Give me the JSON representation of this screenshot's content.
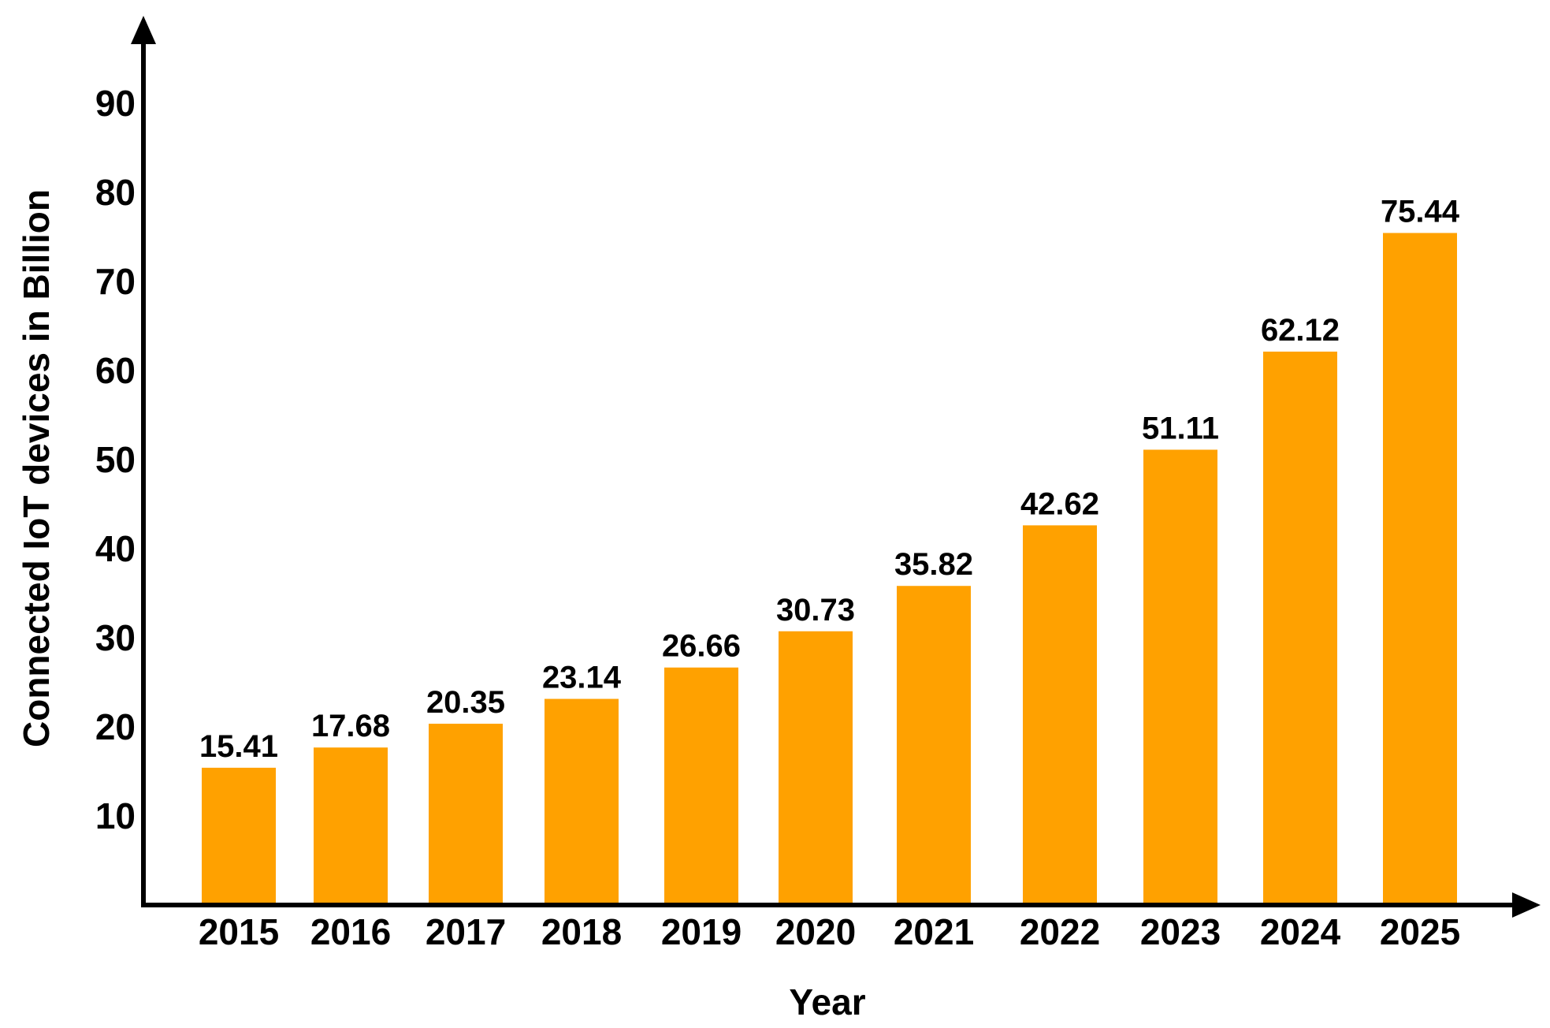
{
  "chart_data": {
    "type": "bar",
    "title": "",
    "xlabel": "Year",
    "ylabel": "Connected IoT devices in Billion",
    "categories": [
      "2015",
      "2016",
      "2017",
      "2018",
      "2019",
      "2020",
      "2021",
      "2022",
      "2023",
      "2024",
      "2025"
    ],
    "values": [
      15.41,
      17.68,
      20.35,
      23.14,
      26.66,
      30.73,
      35.82,
      42.62,
      51.11,
      62.12,
      75.44
    ],
    "value_labels": [
      "15.41",
      "17.68",
      "20.35",
      "23.14",
      "26.66",
      "30.73",
      "35.82",
      "42.62",
      "51.11",
      "62.12",
      "75.44"
    ],
    "yticks": [
      "10",
      "20",
      "30",
      "40",
      "50",
      "60",
      "70",
      "80",
      "90"
    ],
    "ylim": [
      0,
      100
    ],
    "grid": false,
    "legend": "none",
    "bar_color": "#FFA100",
    "axis_color": "#000000"
  }
}
